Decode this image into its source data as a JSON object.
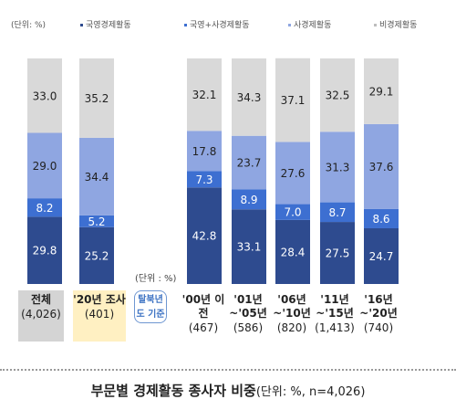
{
  "unit_label": "(단위: %)",
  "unit_label_2": "(단위 : %)",
  "basis_label": "탈북년도 기준",
  "caption": {
    "title": "부문별 경제활동 종사자 비중",
    "note": "(단위: %, n=4,026)"
  },
  "colors": {
    "state": "#2e4b8f",
    "both": "#3d6fd1",
    "private": "#8fa6e1",
    "none": "#d9d9d9"
  },
  "chart_data": {
    "type": "bar",
    "stacked": true,
    "title": "부문별 경제활동 종사자 비중",
    "ylim": [
      0,
      100
    ],
    "legend_position": "top",
    "categories": [
      {
        "name": "전체",
        "n": "(4,026)"
      },
      {
        "name": "'20년 조사",
        "n": "(401)"
      },
      {
        "name": "'00년 이전",
        "n": "(467)"
      },
      {
        "name": "'01년 ~'05년",
        "n": "(586)"
      },
      {
        "name": "'06년 ~'10년",
        "n": "(820)"
      },
      {
        "name": "'11년 ~'15년",
        "n": "(1,413)"
      },
      {
        "name": "'16년 ~'20년",
        "n": "(740)"
      }
    ],
    "series": [
      {
        "name": "국영경제활동",
        "values": [
          29.8,
          25.2,
          42.8,
          33.1,
          28.4,
          27.5,
          24.7
        ]
      },
      {
        "name": "국영+사경제활동",
        "values": [
          8.2,
          5.2,
          7.3,
          8.9,
          7.0,
          8.7,
          8.6
        ]
      },
      {
        "name": "사경제활동",
        "values": [
          29.0,
          34.4,
          17.8,
          23.7,
          27.6,
          31.3,
          37.6
        ]
      },
      {
        "name": "비경제활동",
        "values": [
          33.0,
          35.2,
          32.1,
          34.3,
          37.1,
          32.5,
          29.1
        ]
      }
    ]
  }
}
